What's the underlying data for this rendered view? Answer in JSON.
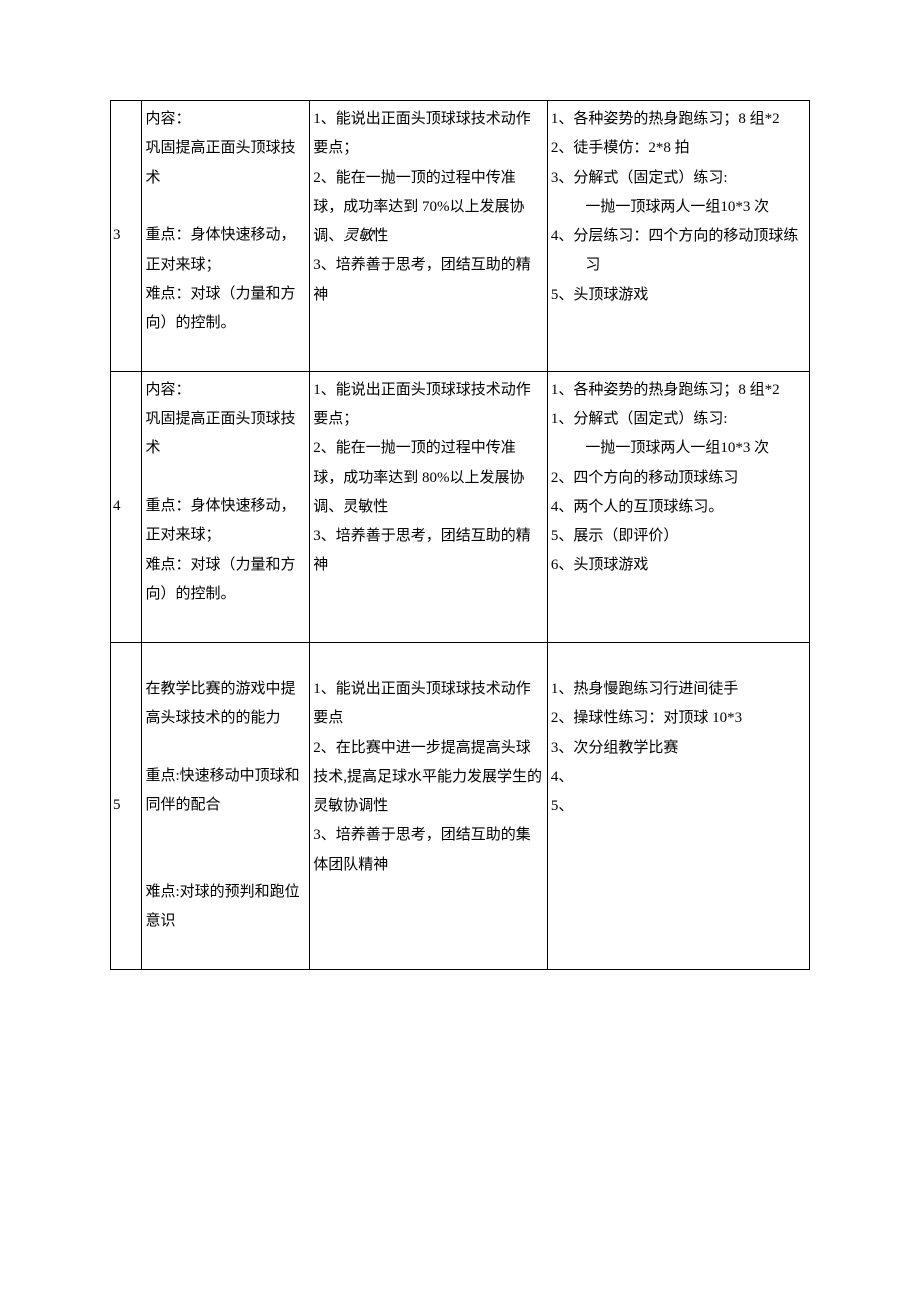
{
  "rows": [
    {
      "num": "3",
      "content": {
        "title": "内容：",
        "body": "巩固提高正面头顶球技术",
        "focus_label": "重点：",
        "focus": "身体快速移动，正对来球；",
        "difficulty_label": "难点：",
        "difficulty": "对球（力量和方向）的控制。"
      },
      "goals": [
        "1、能说出正面头顶球球技术动作要点；",
        "2、能在一抛一顶的过程中传准球，成功率达到 70%以上发展协调、灵敏性",
        "3、培养善于思考，团结互助的精神"
      ],
      "goal2_prefix": "2、能在一抛一顶的过程中传准球，成功率达到 70%以上发展协调、",
      "goal2_italic": "灵敏",
      "goal2_suffix": "性",
      "methods": [
        {
          "num": "1、",
          "text": "各种姿势的热身跑练习；8 组*2"
        },
        {
          "num": "2、",
          "text": "徒手模仿：2*8 拍"
        },
        {
          "num": "3、",
          "text": "分解式（固定式）练习:",
          "sub": "一抛一顶球两人一组10*3 次"
        },
        {
          "num": "4、",
          "text": "分层练习：四个方向的移动顶球练习"
        },
        {
          "num": "5、",
          "text": "头顶球游戏"
        }
      ]
    },
    {
      "num": "4",
      "content": {
        "title": "内容：",
        "body": "巩固提高正面头顶球技术",
        "focus_label": "重点：",
        "focus": "身体快速移动，正对来球；",
        "difficulty_label": "难点：",
        "difficulty": "对球（力量和方向）的控制。"
      },
      "goals": [
        "1、能说出正面头顶球球技术动作要点；",
        "2、能在一抛一顶的过程中传准球，成功率达到 80%以上发展协调、灵敏性",
        "3、培养善于思考，团结互助的精神"
      ],
      "methods": [
        {
          "num": "1、",
          "text": "各种姿势的热身跑练习；8 组*2"
        },
        {
          "num": "1、",
          "text": "分解式（固定式）练习:",
          "sub": "一抛一顶球两人一组10*3 次"
        },
        {
          "num": "2、",
          "text": "四个方向的移动顶球练习"
        },
        {
          "num": "4、",
          "text": "两个人的互顶球练习。"
        },
        {
          "num": "5、",
          "text": "展示（即评价）"
        },
        {
          "num": "6、",
          "text": "头顶球游戏"
        }
      ]
    },
    {
      "num": "5",
      "content": {
        "body": "在教学比赛的游戏中提高头球技术的的能力",
        "focus_label": "重点:",
        "focus": "快速移动中顶球和同伴的配合",
        "difficulty_label": "难点:",
        "difficulty": "对球的预判和跑位意识"
      },
      "goals": [
        "1、能说出正面头顶球球技术动作要点",
        "2、在比赛中进一步提高提高头球技术,提高足球水平能力发展学生的灵敏协调性",
        "3、培养善于思考，团结互助的集体团队精神"
      ],
      "methods": [
        {
          "num": "1、",
          "text": "热身慢跑练习行进间徒手"
        },
        {
          "num": "2、",
          "text": "操球性练习：对顶球 10*3"
        },
        {
          "num": "3、",
          "text": "次分组教学比赛"
        },
        {
          "num": "4、",
          "text": ""
        },
        {
          "num": "5、",
          "text": ""
        }
      ]
    }
  ]
}
